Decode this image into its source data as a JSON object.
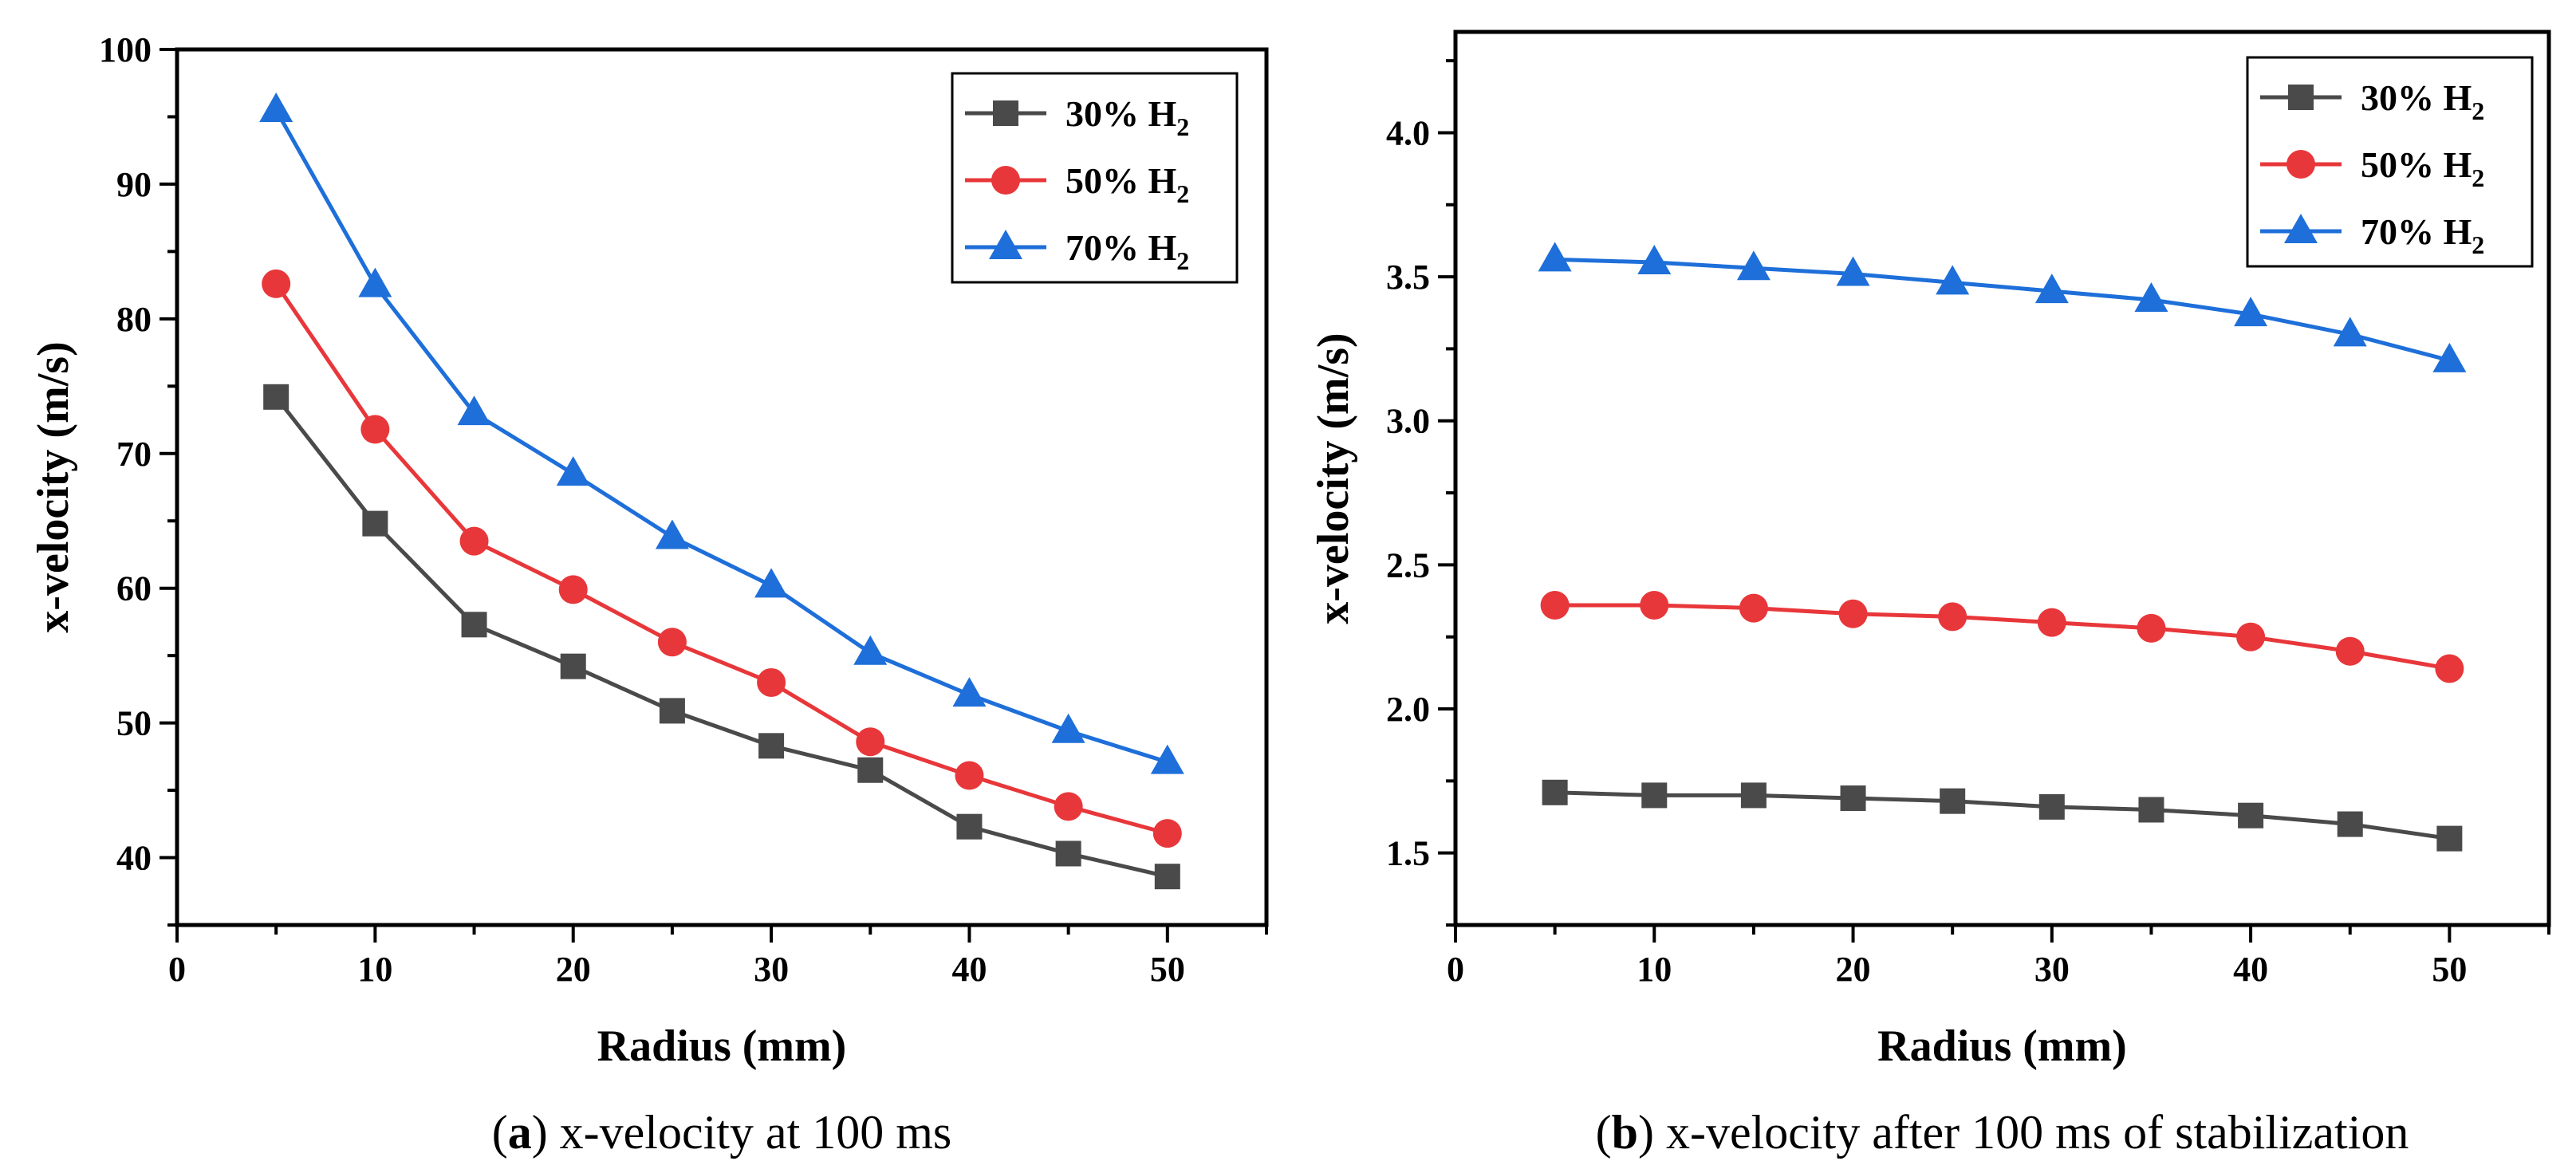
{
  "chart_data": [
    {
      "id": "a",
      "type": "line",
      "caption_letter": "a",
      "caption_text": ") x-velocity at 100 ms",
      "xlabel": "Radius (mm)",
      "ylabel": "x-velocity (m/s)",
      "xlim": [
        0,
        55
      ],
      "ylim": [
        35,
        100
      ],
      "xticks": [
        0,
        10,
        20,
        30,
        40,
        50
      ],
      "yticks": [
        40,
        50,
        60,
        70,
        80,
        90,
        100
      ],
      "ytick_decimals": 0,
      "legend_position": "top-right",
      "x": [
        5,
        10,
        15,
        20,
        25,
        30,
        35,
        40,
        45,
        50
      ],
      "series": [
        {
          "name": "30% H",
          "sub": "2",
          "color": "#4a4a4a",
          "marker": "square",
          "values": [
            74.2,
            64.8,
            57.3,
            54.2,
            50.9,
            48.3,
            46.5,
            42.3,
            40.3,
            38.6
          ]
        },
        {
          "name": "50% H",
          "sub": "2",
          "color": "#e8373a",
          "marker": "circle",
          "values": [
            82.6,
            71.8,
            63.5,
            59.9,
            56.0,
            53.0,
            48.6,
            46.1,
            43.8,
            41.8
          ]
        },
        {
          "name": "70% H",
          "sub": "2",
          "color": "#1e6fd9",
          "marker": "triangle",
          "values": [
            95.5,
            82.5,
            73.0,
            68.5,
            63.8,
            60.2,
            55.2,
            52.1,
            49.4,
            47.1
          ]
        }
      ]
    },
    {
      "id": "b",
      "type": "line",
      "caption_letter": "b",
      "caption_text": ") x-velocity after 100 ms of stabilization",
      "xlabel": "Radius (mm)",
      "ylabel": "x-velocity (m/s)",
      "xlim": [
        0,
        55
      ],
      "ylim": [
        1.25,
        4.35
      ],
      "xticks": [
        0,
        10,
        20,
        30,
        40,
        50
      ],
      "yticks": [
        1.5,
        2.0,
        2.5,
        3.0,
        3.5,
        4.0
      ],
      "ytick_decimals": 1,
      "legend_position": "top-right",
      "x": [
        5,
        10,
        15,
        20,
        25,
        30,
        35,
        40,
        45,
        50
      ],
      "series": [
        {
          "name": "30% H",
          "sub": "2",
          "color": "#4a4a4a",
          "marker": "square",
          "values": [
            1.71,
            1.7,
            1.7,
            1.69,
            1.68,
            1.66,
            1.65,
            1.63,
            1.6,
            1.55
          ]
        },
        {
          "name": "50% H",
          "sub": "2",
          "color": "#e8373a",
          "marker": "circle",
          "values": [
            2.36,
            2.36,
            2.35,
            2.33,
            2.32,
            2.3,
            2.28,
            2.25,
            2.2,
            2.14
          ]
        },
        {
          "name": "70% H",
          "sub": "2",
          "color": "#1e6fd9",
          "marker": "triangle",
          "values": [
            3.56,
            3.55,
            3.53,
            3.51,
            3.48,
            3.45,
            3.42,
            3.37,
            3.3,
            3.21
          ]
        }
      ]
    }
  ]
}
